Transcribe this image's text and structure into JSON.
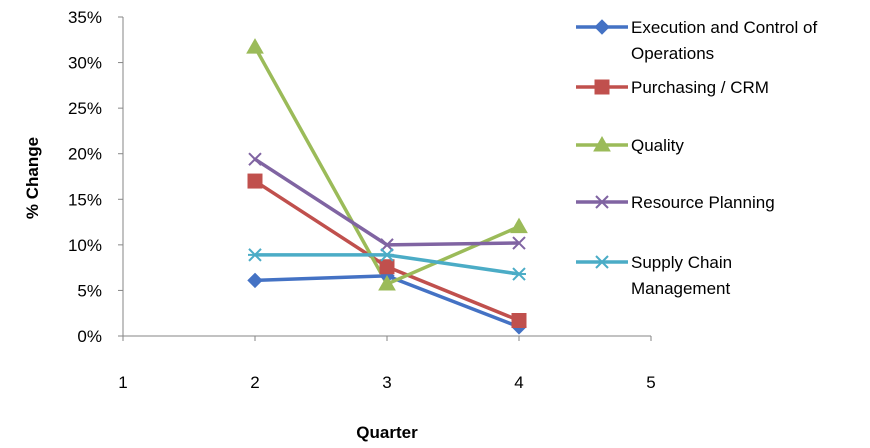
{
  "chart_data": {
    "type": "line",
    "title": "",
    "xlabel": "Quarter",
    "ylabel": "% Change",
    "xlim": [
      1,
      5
    ],
    "ylim": [
      0,
      35
    ],
    "x_ticks": [
      "1",
      "2",
      "3",
      "4",
      "5"
    ],
    "y_ticks": [
      "0%",
      "5%",
      "10%",
      "15%",
      "20%",
      "25%",
      "30%",
      "35%"
    ],
    "grid": false,
    "legend_position": "right",
    "x": [
      2,
      3,
      4
    ],
    "series": [
      {
        "name_lines": [
          "Execution and Control of",
          "Operations"
        ],
        "name": "Execution and Control of Operations",
        "color": "#4472C4",
        "marker": "diamond",
        "values": [
          6.1,
          6.6,
          1.0
        ]
      },
      {
        "name_lines": [
          "Purchasing / CRM"
        ],
        "name": "Purchasing / CRM",
        "color": "#C0504D",
        "marker": "square",
        "values": [
          17.0,
          7.6,
          1.7
        ]
      },
      {
        "name_lines": [
          "Quality"
        ],
        "name": "Quality",
        "color": "#9BBB59",
        "marker": "triangle",
        "values": [
          31.7,
          5.7,
          12.0
        ]
      },
      {
        "name_lines": [
          "Resource Planning"
        ],
        "name": "Resource Planning",
        "color": "#8064A2",
        "marker": "x",
        "values": [
          19.4,
          10.0,
          10.2
        ]
      },
      {
        "name_lines": [
          "Supply Chain",
          "Management"
        ],
        "name": "Supply Chain Management",
        "color": "#4BACC6",
        "marker": "star",
        "values": [
          8.9,
          8.9,
          6.8
        ]
      }
    ]
  }
}
